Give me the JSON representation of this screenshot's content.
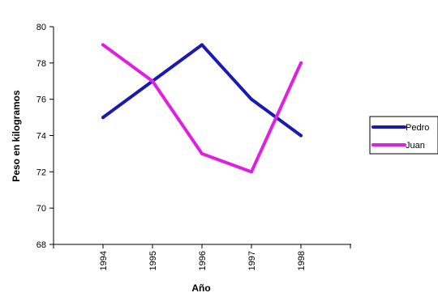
{
  "chart_data": {
    "type": "line",
    "xlabel": "Año",
    "ylabel": "Peso en kilogramos",
    "categories": [
      "1994",
      "1995",
      "1996",
      "1997",
      "1998"
    ],
    "ylim": [
      68,
      80
    ],
    "yticks": [
      "68",
      "70",
      "72",
      "74",
      "76",
      "78",
      "80"
    ],
    "grid": false,
    "legend_position": "right",
    "series": [
      {
        "name": "Pedro",
        "values": [
          75,
          77,
          79,
          76,
          74
        ],
        "color": "#1a1ab0"
      },
      {
        "name": "Juan",
        "values": [
          79,
          77,
          73,
          72,
          78
        ],
        "color": "#e020e0"
      }
    ]
  }
}
